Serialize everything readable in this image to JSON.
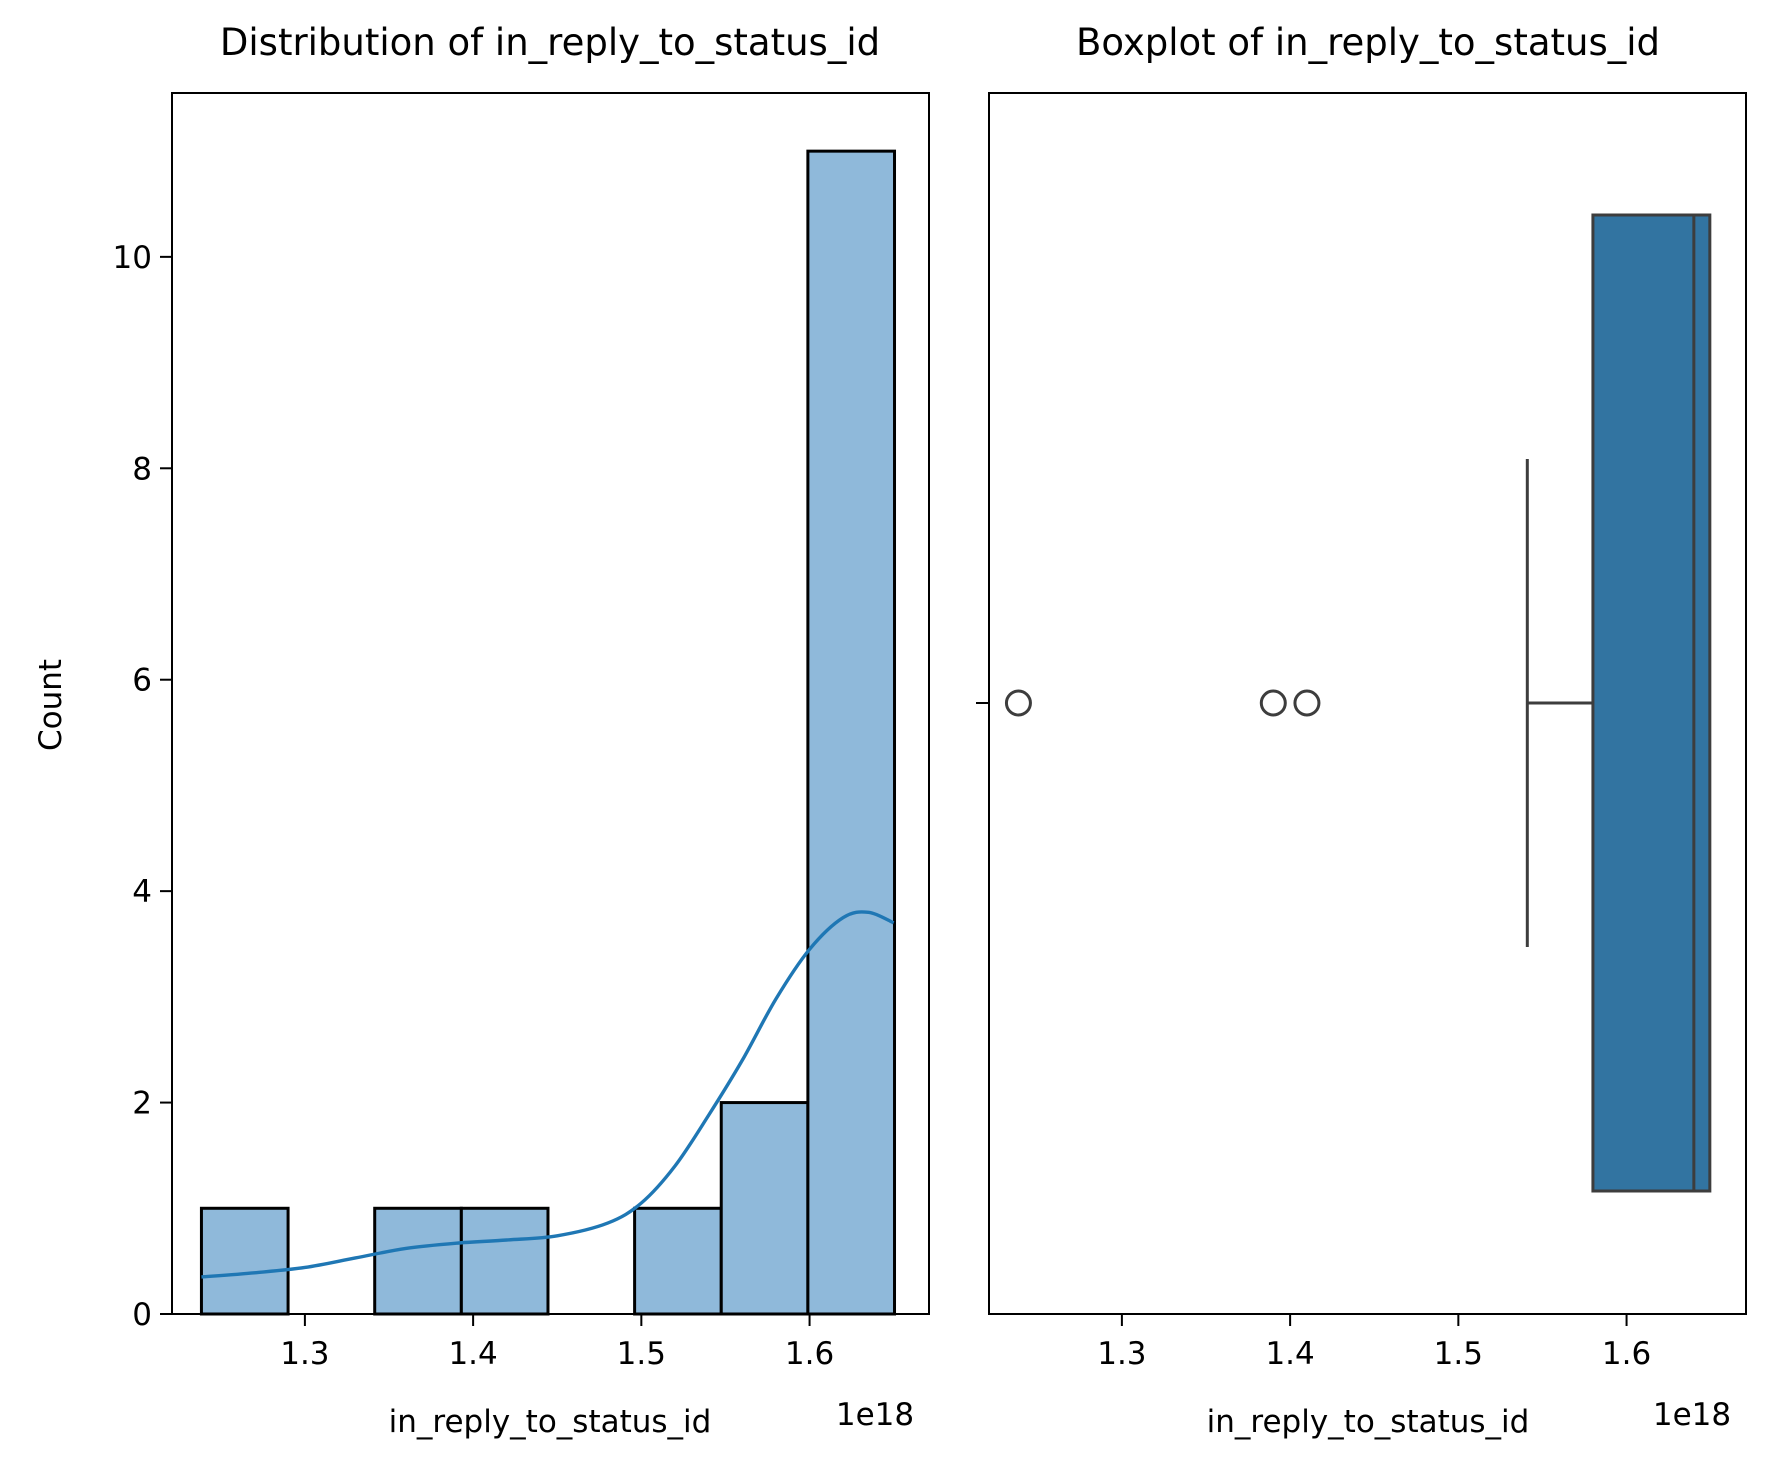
{
  "chart_data": [
    {
      "type": "bar",
      "title": "Distribution of in_reply_to_status_id",
      "xlabel": "in_reply_to_status_id",
      "ylabel": "Count",
      "x_offset_label": "1e18",
      "xlim": [
        1.221,
        1.671
      ],
      "ylim": [
        0,
        11.55
      ],
      "xticks": [
        1.3,
        1.4,
        1.5,
        1.6
      ],
      "xtick_labels": [
        "1.3",
        "1.4",
        "1.5",
        "1.6"
      ],
      "yticks": [
        0,
        2,
        4,
        6,
        8,
        10
      ],
      "ytick_labels": [
        "0",
        "2",
        "4",
        "6",
        "8",
        "10"
      ],
      "bin_edges": [
        1.2385,
        1.29,
        1.3415,
        1.393,
        1.4445,
        1.496,
        1.5475,
        1.599,
        1.6505
      ],
      "counts": [
        1,
        0,
        1,
        1,
        0,
        1,
        2,
        11
      ],
      "kde": {
        "x": [
          1.2385,
          1.27,
          1.3,
          1.33,
          1.36,
          1.39,
          1.42,
          1.45,
          1.48,
          1.5,
          1.52,
          1.54,
          1.56,
          1.58,
          1.6,
          1.62,
          1.635,
          1.65
        ],
        "y": [
          0.35,
          0.39,
          0.44,
          0.53,
          0.62,
          0.67,
          0.7,
          0.74,
          0.86,
          1.05,
          1.4,
          1.88,
          2.4,
          2.98,
          3.45,
          3.75,
          3.8,
          3.7
        ]
      },
      "bar_color": "#8fb9da",
      "line_color": "#1f77b4",
      "grid": false
    },
    {
      "type": "box",
      "title": "Boxplot of in_reply_to_status_id",
      "xlabel": "in_reply_to_status_id",
      "x_offset_label": "1e18",
      "xlim": [
        1.221,
        1.671
      ],
      "xticks": [
        1.3,
        1.4,
        1.5,
        1.6
      ],
      "xtick_labels": [
        "1.3",
        "1.4",
        "1.5",
        "1.6"
      ],
      "whisker_low": 1.541,
      "q1": 1.58,
      "median": 1.64,
      "q3": 1.6495,
      "whisker_high": 1.6495,
      "outliers": [
        1.2385,
        1.39,
        1.41
      ],
      "box_color": "#3274a1",
      "grid": false
    }
  ]
}
